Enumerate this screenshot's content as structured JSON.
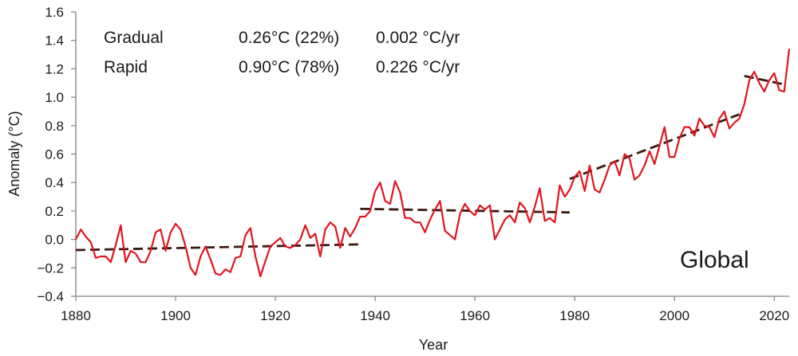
{
  "chart_data": {
    "type": "line",
    "region_label": "Global",
    "xlabel": "Year",
    "ylabel": "Anomaly (°C)",
    "xlim": [
      1880,
      2023
    ],
    "ylim": [
      -0.4,
      1.6
    ],
    "x_ticks": [
      "1880",
      "1900",
      "1920",
      "1940",
      "1960",
      "1980",
      "2000",
      "2020"
    ],
    "y_ticks": [
      "1.6",
      "1.4",
      "1.2",
      "1.0",
      "0.8",
      "0.6",
      "0.4",
      "0.2",
      "0.0",
      "−0.2",
      "−0.4"
    ],
    "grid": false,
    "stats": [
      {
        "label": "Gradual",
        "change": "0.26°C (22%)",
        "rate": "0.002 °C/yr"
      },
      {
        "label": "Rapid",
        "change": "0.90°C (78%)",
        "rate": "0.226 °C/yr"
      }
    ],
    "series": [
      {
        "color": "#e0151f",
        "style": "solid",
        "x": [
          1880,
          1881,
          1882,
          1883,
          1884,
          1885,
          1886,
          1887,
          1888,
          1889,
          1890,
          1891,
          1892,
          1893,
          1894,
          1895,
          1896,
          1897,
          1898,
          1899,
          1900,
          1901,
          1902,
          1903,
          1904,
          1905,
          1906,
          1907,
          1908,
          1909,
          1910,
          1911,
          1912,
          1913,
          1914,
          1915,
          1916,
          1917,
          1918,
          1919,
          1920,
          1921,
          1922,
          1923,
          1924,
          1925,
          1926,
          1927,
          1928,
          1929,
          1930,
          1931,
          1932,
          1933,
          1934,
          1935,
          1936,
          1937,
          1938,
          1939,
          1940,
          1941,
          1942,
          1943,
          1944,
          1945,
          1946,
          1947,
          1948,
          1949,
          1950,
          1951,
          1952,
          1953,
          1954,
          1955,
          1956,
          1957,
          1958,
          1959,
          1960,
          1961,
          1962,
          1963,
          1964,
          1965,
          1966,
          1967,
          1968,
          1969,
          1970,
          1971,
          1972,
          1973,
          1974,
          1975,
          1976,
          1977,
          1978,
          1979,
          1980,
          1981,
          1982,
          1983,
          1984,
          1985,
          1986,
          1987,
          1988,
          1989,
          1990,
          1991,
          1992,
          1993,
          1994,
          1995,
          1996,
          1997,
          1998,
          1999,
          2000,
          2001,
          2002,
          2003,
          2004,
          2005,
          2006,
          2007,
          2008,
          2009,
          2010,
          2011,
          2012,
          2013,
          2014,
          2015,
          2016,
          2017,
          2018,
          2019,
          2020,
          2021,
          2022,
          2023
        ],
        "values": [
          0.0,
          0.07,
          0.02,
          -0.02,
          -0.13,
          -0.12,
          -0.12,
          -0.16,
          -0.04,
          0.1,
          -0.16,
          -0.08,
          -0.1,
          -0.16,
          -0.16,
          -0.08,
          0.05,
          0.07,
          -0.08,
          0.05,
          0.11,
          0.07,
          -0.05,
          -0.2,
          -0.25,
          -0.12,
          -0.05,
          -0.14,
          -0.24,
          -0.25,
          -0.21,
          -0.23,
          -0.13,
          -0.12,
          0.03,
          0.08,
          -0.12,
          -0.26,
          -0.15,
          -0.05,
          -0.02,
          0.01,
          -0.05,
          -0.06,
          -0.04,
          0.0,
          0.1,
          0.01,
          0.04,
          -0.12,
          0.07,
          0.12,
          0.09,
          -0.06,
          0.08,
          0.02,
          0.08,
          0.16,
          0.16,
          0.2,
          0.34,
          0.4,
          0.27,
          0.25,
          0.41,
          0.33,
          0.15,
          0.15,
          0.12,
          0.12,
          0.05,
          0.14,
          0.21,
          0.27,
          0.06,
          0.03,
          0.0,
          0.18,
          0.25,
          0.2,
          0.17,
          0.24,
          0.21,
          0.24,
          0.0,
          0.07,
          0.14,
          0.17,
          0.12,
          0.26,
          0.22,
          0.12,
          0.23,
          0.36,
          0.13,
          0.15,
          0.12,
          0.38,
          0.3,
          0.35,
          0.44,
          0.48,
          0.34,
          0.52,
          0.35,
          0.33,
          0.42,
          0.52,
          0.55,
          0.45,
          0.6,
          0.57,
          0.42,
          0.45,
          0.52,
          0.62,
          0.53,
          0.66,
          0.79,
          0.58,
          0.58,
          0.71,
          0.79,
          0.79,
          0.73,
          0.85,
          0.8,
          0.79,
          0.72,
          0.85,
          0.9,
          0.78,
          0.82,
          0.85,
          0.95,
          1.12,
          1.18,
          1.1,
          1.04,
          1.12,
          1.17,
          1.05,
          1.04,
          1.34
        ]
      },
      {
        "color": "#3b1a12",
        "style": "dashed",
        "segments": [
          {
            "x": [
              1880,
              1937
            ],
            "y": [
              -0.075,
              -0.035
            ]
          },
          {
            "x": [
              1937,
              1979
            ],
            "y": [
              0.215,
              0.19
            ]
          },
          {
            "x": [
              1979,
              2013
            ],
            "y": [
              0.425,
              0.88
            ]
          },
          {
            "x": [
              2014,
              2022
            ],
            "y": [
              1.15,
              1.09
            ]
          }
        ]
      }
    ]
  }
}
